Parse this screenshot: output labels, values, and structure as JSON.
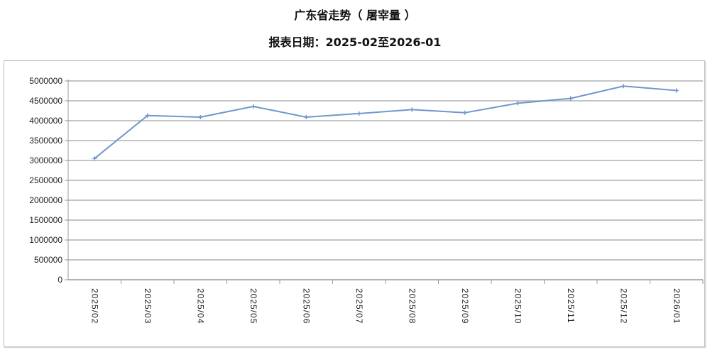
{
  "chart_data": {
    "type": "line",
    "title": "广东省走势（ 屠宰量 ）",
    "subtitle": "报表日期：2025-02至2026-01",
    "categories": [
      "2025/02",
      "2025/03",
      "2025/04",
      "2025/05",
      "2025/06",
      "2025/07",
      "2025/08",
      "2025/09",
      "2025/10",
      "2025/11",
      "2025/12",
      "2026/01"
    ],
    "values": [
      3050000,
      4130000,
      4090000,
      4360000,
      4090000,
      4180000,
      4280000,
      4200000,
      4440000,
      4560000,
      4870000,
      4760000
    ],
    "ylim": [
      0,
      5000000
    ],
    "yticks": [
      "0",
      "500000",
      "1000000",
      "1500000",
      "2000000",
      "2500000",
      "3000000",
      "3500000",
      "4000000",
      "4500000",
      "5000000"
    ],
    "grid": true,
    "legend": "none",
    "line_color": "#6f96cc"
  }
}
